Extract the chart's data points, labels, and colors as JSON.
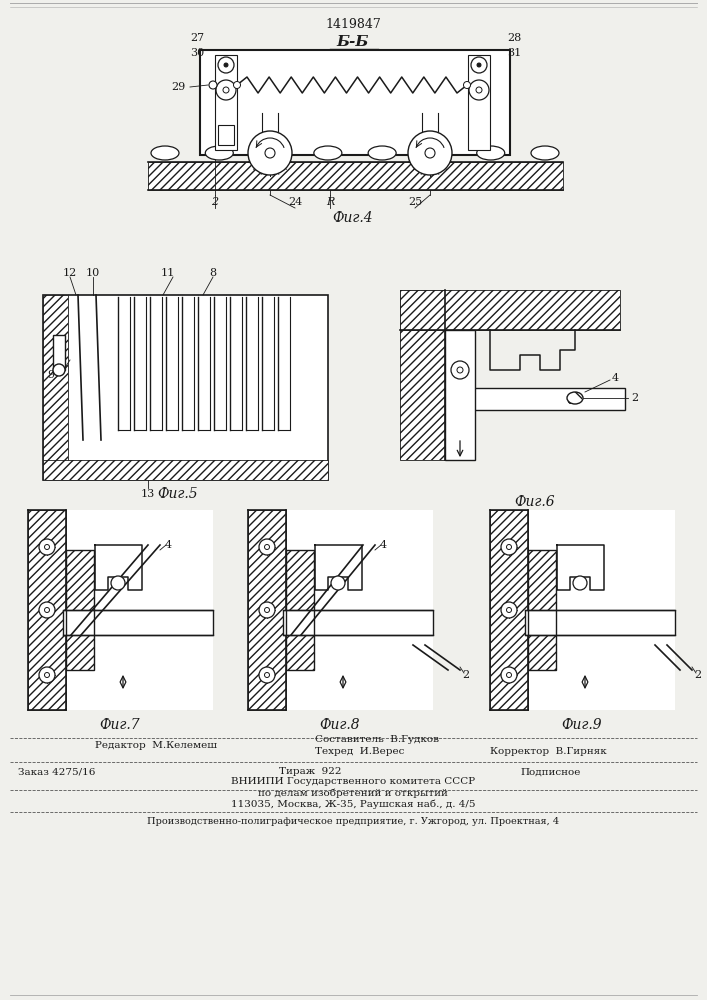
{
  "patent_number": "1419847",
  "section_label": "Б-Б",
  "fig4_label": "Фиг.4",
  "fig5_label": "Фиг.5",
  "fig6_label": "Фиг.6",
  "fig7_label": "Фиг.7",
  "fig8_label": "Фиг.8",
  "fig9_label": "Фиг.9",
  "bg_color": "#f0f0ec",
  "line_color": "#1a1a1a",
  "footer": {
    "redaktor": "Редактор  М.Келемеш",
    "sostavitel": "Составитель  В.Гудков",
    "tekhred": "Техред  И.Верес",
    "korrektor": "Корректор  В.Гирняк",
    "zakaz": "Заказ 4275/16",
    "tirazh": "Тираж  922",
    "podpisnoe": "Подписное",
    "vniigi": "ВНИИПИ Государственного комитета СССР",
    "podelam": "по делам изобретений и открытий",
    "address": "113035, Москва, Ж-35, Раушская наб., д. 4/5",
    "predpriyatie": "Производственно-полиграфическое предприятие, г. Ужгород, ул. Проектная, 4"
  }
}
